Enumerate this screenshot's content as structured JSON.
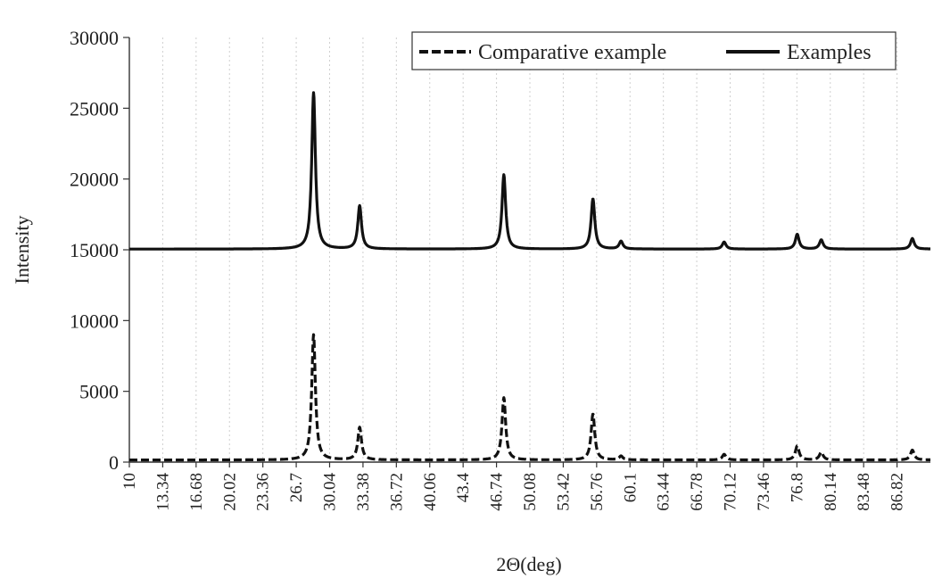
{
  "chart_data": {
    "type": "line",
    "xlabel": "2Θ(deg)",
    "ylabel": "Intensity",
    "xlim": [
      10,
      90
    ],
    "ylim": [
      0,
      30000
    ],
    "y_ticks": [
      0,
      5000,
      10000,
      15000,
      20000,
      25000,
      30000
    ],
    "x_tick_labels": [
      "10",
      "13.34",
      "16.68",
      "20.02",
      "23.36",
      "26.7",
      "30.04",
      "33.38",
      "36.72",
      "40.06",
      "43.4",
      "46.74",
      "50.08",
      "53.42",
      "56.76",
      "60.1",
      "63.44",
      "66.78",
      "70.12",
      "73.46",
      "76.8",
      "80.14",
      "83.48",
      "86.82"
    ],
    "grid": "vertical dotted",
    "legend_position": "top-right",
    "series": [
      {
        "name": "Comparative example",
        "style": "dashed",
        "color": "#111111",
        "baseline": 150,
        "peaks": [
          {
            "x": 28.4,
            "y": 9000
          },
          {
            "x": 33.0,
            "y": 2450
          },
          {
            "x": 47.4,
            "y": 4550
          },
          {
            "x": 56.3,
            "y": 3400
          },
          {
            "x": 59.1,
            "y": 420
          },
          {
            "x": 69.4,
            "y": 550
          },
          {
            "x": 76.7,
            "y": 1150
          },
          {
            "x": 79.1,
            "y": 700
          },
          {
            "x": 88.2,
            "y": 850
          }
        ]
      },
      {
        "name": "Examples",
        "style": "solid",
        "color": "#111111",
        "baseline": 15050,
        "peaks": [
          {
            "x": 28.4,
            "y": 26100
          },
          {
            "x": 33.0,
            "y": 18100
          },
          {
            "x": 47.4,
            "y": 20300
          },
          {
            "x": 56.3,
            "y": 18600
          },
          {
            "x": 59.1,
            "y": 15600
          },
          {
            "x": 69.4,
            "y": 15550
          },
          {
            "x": 76.7,
            "y": 16100
          },
          {
            "x": 79.1,
            "y": 15700
          },
          {
            "x": 88.2,
            "y": 15800
          }
        ]
      }
    ]
  }
}
